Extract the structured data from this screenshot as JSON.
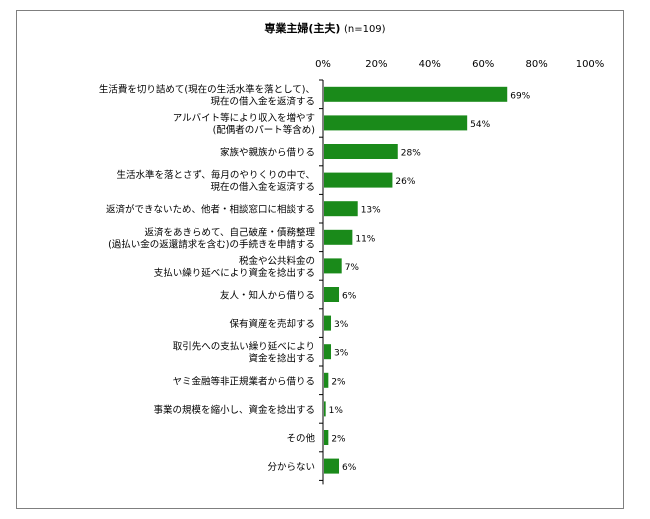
{
  "chart_data": {
    "type": "bar",
    "orientation": "horizontal",
    "title": "専業主婦(主夫)",
    "subtitle": "(n=109)",
    "xlim": [
      0,
      100
    ],
    "tick_labels": [
      "0%",
      "20%",
      "40%",
      "60%",
      "80%",
      "100%"
    ],
    "tick_values": [
      0,
      20,
      40,
      60,
      80,
      100
    ],
    "bar_color": "#1a8a1a",
    "categories": [
      [
        "生活費を切り詰めて(現在の生活水準を落として)、",
        "現在の借入金を返済する"
      ],
      [
        "アルバイト等により収入を増やす",
        "(配偶者のパート等含め)"
      ],
      [
        "家族や親族から借りる"
      ],
      [
        "生活水準を落とさず、毎月のやりくりの中で、",
        "現在の借入金を返済する"
      ],
      [
        "返済ができないため、他者・相談窓口に相談する"
      ],
      [
        "返済をあきらめて、自己破産・債務整理",
        "(過払い金の返還請求を含む)の手続きを申請する"
      ],
      [
        "税金や公共料金の",
        "支払い繰り延べにより資金を捻出する"
      ],
      [
        "友人・知人から借りる"
      ],
      [
        "保有資産を売却する"
      ],
      [
        "取引先への支払い繰り延べにより",
        "資金を捻出する"
      ],
      [
        "ヤミ金融等非正規業者から借りる"
      ],
      [
        "事業の規模を縮小し、資金を捻出する"
      ],
      [
        "その他"
      ],
      [
        "分からない"
      ]
    ],
    "values": [
      69,
      54,
      28,
      26,
      13,
      11,
      7,
      6,
      3,
      3,
      2,
      1,
      2,
      6
    ],
    "value_labels": [
      "69%",
      "54%",
      "28%",
      "26%",
      "13%",
      "11%",
      "7%",
      "6%",
      "3%",
      "3%",
      "2%",
      "1%",
      "2%",
      "6%"
    ]
  }
}
